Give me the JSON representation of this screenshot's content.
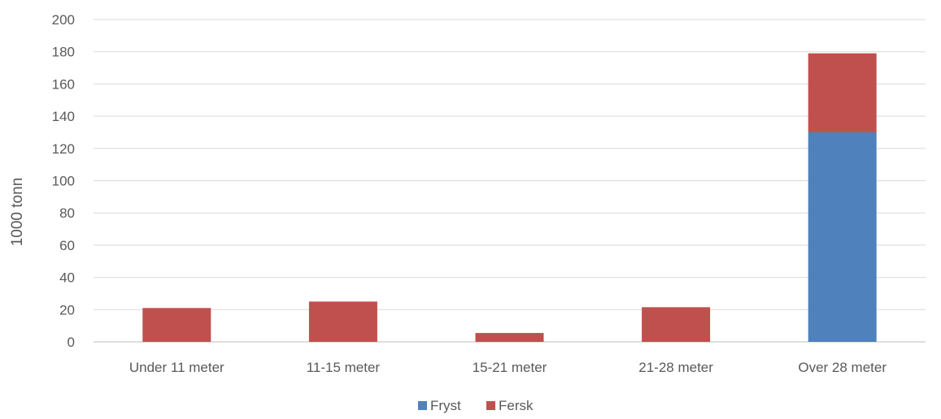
{
  "chart_data": {
    "type": "bar",
    "stacked": true,
    "title": "",
    "xlabel": "",
    "ylabel": "1000 tonn",
    "ylim": [
      0,
      200
    ],
    "yticks": [
      0,
      20,
      40,
      60,
      80,
      100,
      120,
      140,
      160,
      180,
      200
    ],
    "categories": [
      "Under 11 meter",
      "11-15 meter",
      "15-21 meter",
      "21-28 meter",
      "Over 28 meter"
    ],
    "series": [
      {
        "name": "Fryst",
        "color": "#4f81bd",
        "values": [
          0,
          0,
          0,
          0,
          130
        ]
      },
      {
        "name": "Fersk",
        "color": "#c0504d",
        "values": [
          21,
          25,
          5.5,
          21.5,
          49
        ]
      }
    ],
    "grid": true,
    "legend": "bottom-center"
  }
}
